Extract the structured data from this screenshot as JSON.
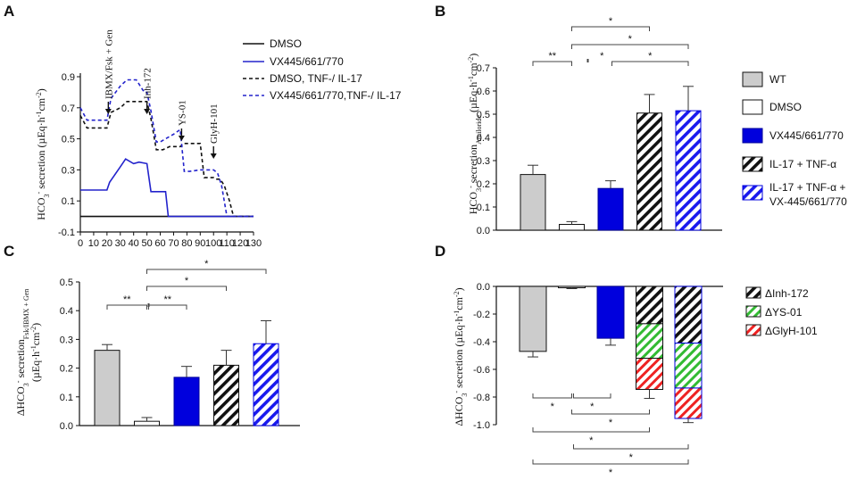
{
  "colors": {
    "wt": "#cccccc",
    "dmso_bar": "#ffffff",
    "vx": "#0000dd",
    "black": "#111111",
    "blue_line": "#2323cc",
    "green": "#33bb33",
    "red": "#ee2222"
  },
  "chart_data": [
    {
      "panel": "A",
      "type": "line",
      "ylabel": "HCO3- secretion (µEq·h-1cm-2)",
      "xlabel": "",
      "xlim": [
        0,
        130
      ],
      "ylim": [
        -0.1,
        0.9
      ],
      "xticks": [
        "0",
        "10",
        "20",
        "30",
        "40",
        "50",
        "60",
        "70",
        "80",
        "90",
        "100",
        "110",
        "120",
        "130"
      ],
      "yticks": [
        "-0.1",
        "0.1",
        "0.3",
        "0.5",
        "0.7",
        "0.9"
      ],
      "annotations": [
        {
          "label": "IBMX/Fsk + Gen",
          "x": 21
        },
        {
          "label": "Inh-172",
          "x": 50
        },
        {
          "label": "YS-01",
          "x": 76
        },
        {
          "label": "GlyH-101",
          "x": 100
        }
      ],
      "series": [
        {
          "name": "DMSO",
          "style": "solid",
          "color": "#111111",
          "x": [
            0,
            130
          ],
          "y": [
            0,
            0
          ]
        },
        {
          "name": "VX445/661/770",
          "style": "solid",
          "color": "#2323cc",
          "x": [
            0,
            20,
            22,
            30,
            34,
            40,
            44,
            50,
            53,
            57,
            60,
            64,
            66,
            130
          ],
          "y": [
            0.17,
            0.17,
            0.22,
            0.32,
            0.37,
            0.34,
            0.35,
            0.34,
            0.16,
            0.16,
            0.16,
            0.16,
            0,
            0
          ]
        },
        {
          "name": "DMSO, TNF-/ IL-17",
          "style": "dash",
          "color": "#111111",
          "x": [
            0,
            5,
            20,
            23,
            30,
            35,
            45,
            50,
            53,
            57,
            62,
            67,
            75,
            78,
            90,
            93,
            98,
            100,
            102,
            105,
            108,
            112,
            115,
            130
          ],
          "y": [
            0.65,
            0.57,
            0.57,
            0.67,
            0.7,
            0.74,
            0.74,
            0.74,
            0.63,
            0.43,
            0.43,
            0.45,
            0.45,
            0.47,
            0.47,
            0.25,
            0.25,
            0.25,
            0.24,
            0.24,
            0.2,
            0.1,
            0,
            0
          ]
        },
        {
          "name": "VX445/661/770,TNF-/ IL-17",
          "style": "dash",
          "color": "#2323cc",
          "x": [
            0,
            5,
            20,
            23,
            30,
            35,
            42,
            48,
            50,
            53,
            57,
            60,
            70,
            75,
            78,
            82,
            90,
            95,
            100,
            103,
            106,
            110,
            130
          ],
          "y": [
            0.7,
            0.62,
            0.62,
            0.76,
            0.84,
            0.88,
            0.88,
            0.8,
            0.8,
            0.68,
            0.48,
            0.48,
            0.53,
            0.56,
            0.29,
            0.29,
            0.3,
            0.3,
            0.3,
            0.28,
            0.2,
            0,
            0
          ]
        }
      ],
      "legend": [
        "DMSO",
        "VX445/661/770",
        "DMSO, TNF-/ IL-17",
        "VX445/661/770,TNF-/ IL-17"
      ]
    },
    {
      "panel": "B",
      "type": "bar",
      "ylabel_main": "HCO3- secretion",
      "ylabel_sub": "Amiloride",
      "ylabel_unit": "(µEq·h-1cm-2)",
      "ylim": [
        0,
        0.7
      ],
      "yticks": [
        "0.0",
        "0.1",
        "0.2",
        "0.3",
        "0.4",
        "0.5",
        "0.6",
        "0.7"
      ],
      "categories": [
        "WT",
        "DMSO",
        "VX445/661/770",
        "IL-17 + TNF-α",
        "IL-17 + TNF-α + VX-445/661/770"
      ],
      "values": [
        0.24,
        0.025,
        0.18,
        0.505,
        0.515
      ],
      "errors": [
        0.04,
        0.012,
        0.033,
        0.08,
        0.105
      ],
      "significance": [
        {
          "from": 0,
          "to": 1,
          "label": "**"
        },
        {
          "from": 1,
          "to": 3,
          "label": "*"
        },
        {
          "from": 1,
          "to": 4,
          "label": "*"
        },
        {
          "from": 2,
          "to": 4,
          "label": "*"
        },
        {
          "from": 2,
          "to": 3,
          "label": "*"
        }
      ],
      "legend": [
        {
          "label": "WT"
        },
        {
          "label": "DMSO"
        },
        {
          "label": "VX445/661/770"
        },
        {
          "label": "IL-17 + TNF-α"
        },
        {
          "label": "IL-17 + TNF-α +",
          "label2": "VX-445/661/770"
        }
      ]
    },
    {
      "panel": "C",
      "type": "bar",
      "ylabel_main": "ΔHCO3- secretion",
      "ylabel_sub": "Fsk/IBMX + Gen",
      "ylabel_unit": "(µEq·h-1cm-2)",
      "ylim": [
        0,
        0.5
      ],
      "yticks": [
        "0.0",
        "0.1",
        "0.2",
        "0.3",
        "0.4",
        "0.5"
      ],
      "categories": [
        "WT",
        "DMSO",
        "VX445/661/770",
        "IL-17 + TNF-α",
        "IL-17 + TNF-α + VX-445/661/770"
      ],
      "values": [
        0.262,
        0.015,
        0.168,
        0.21,
        0.285
      ],
      "errors": [
        0.02,
        0.013,
        0.038,
        0.052,
        0.08
      ],
      "significance": [
        {
          "from": 0,
          "to": 1,
          "label": "**"
        },
        {
          "from": 1,
          "to": 2,
          "label": "**"
        },
        {
          "from": 1,
          "to": 3,
          "label": "*"
        },
        {
          "from": 1,
          "to": 4,
          "label": "*"
        }
      ]
    },
    {
      "panel": "D",
      "type": "bar",
      "stacked": true,
      "ylabel": "ΔHCO3- secretion (µEq·h-1cm-2)",
      "ylim": [
        -1.0,
        0.0
      ],
      "yticks": [
        "0.0",
        "-0.2",
        "-0.4",
        "-0.6",
        "-0.8",
        "-1.0"
      ],
      "categories": [
        "WT",
        "DMSO",
        "VX445/661/770",
        "IL-17 + TNF-α",
        "IL-17 + TNF-α + VX-445/661/770"
      ],
      "values": [
        -0.47,
        -0.01,
        -0.375,
        -0.745,
        -0.955
      ],
      "errors": [
        0.04,
        0.006,
        0.05,
        0.065,
        0.03
      ],
      "segments": [
        {
          "category": 3,
          "parts": [
            -0.27,
            -0.25,
            -0.225
          ]
        },
        {
          "category": 4,
          "parts": [
            -0.41,
            -0.325,
            -0.22
          ]
        }
      ],
      "significance": [
        {
          "from": 0,
          "to": 1,
          "label": "*"
        },
        {
          "from": 1,
          "to": 2,
          "label": "*"
        },
        {
          "from": 1,
          "to": 3,
          "label": "*"
        },
        {
          "from": 0,
          "to": 3,
          "label": "*"
        },
        {
          "from": 2,
          "to": 4,
          "label": "*"
        },
        {
          "from": 0,
          "to": 4,
          "label": "*"
        }
      ],
      "legend": [
        "ΔInh-172",
        "ΔYS-01",
        "ΔGlyH-101"
      ]
    }
  ]
}
